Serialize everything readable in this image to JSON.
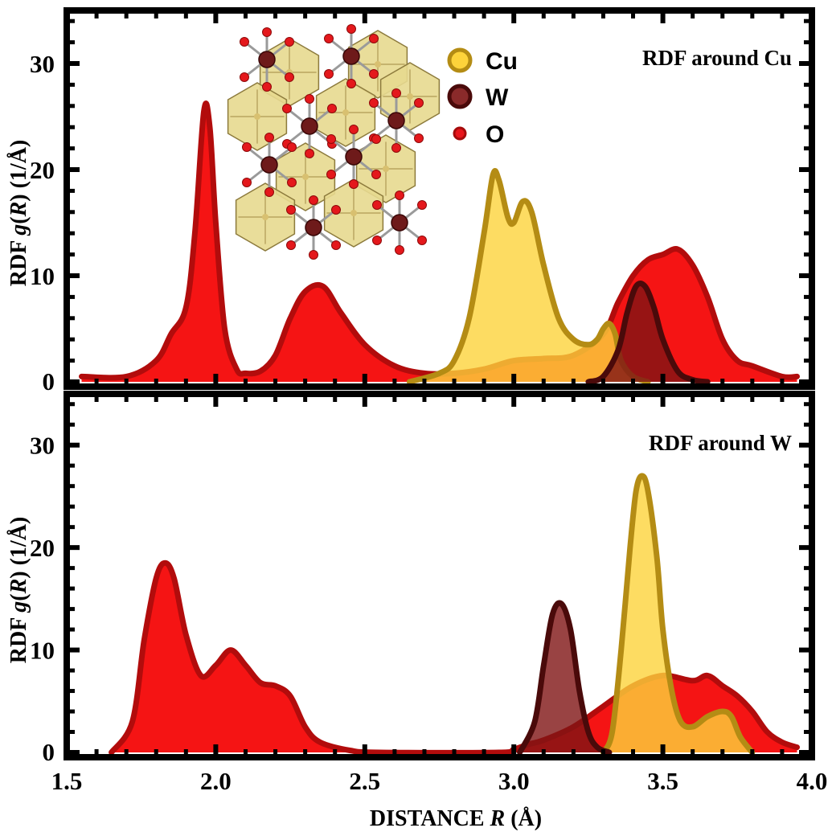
{
  "chart_data": [
    {
      "type": "area",
      "title": "RDF around Cu",
      "xlabel_prefix": "DISTANCE ",
      "xlabel_var": "R",
      "xlabel_suffix": " (Å)",
      "ylabel_prefix": "RDF ",
      "ylabel_func": "g",
      "ylabel_var": "R",
      "ylabel_suffix": " (1/Å)",
      "xlim": [
        1.5,
        4.0
      ],
      "ylim": [
        0,
        35
      ],
      "xticks": [
        "1.5",
        "2.0",
        "2.5",
        "3.0",
        "3.5",
        "4.0"
      ],
      "yticks": [
        "0",
        "10",
        "20",
        "30"
      ],
      "legend": [
        {
          "label": "Cu",
          "color": "#fdd33b",
          "edge": "#b48c14"
        },
        {
          "label": "W",
          "color": "#8a2a2a",
          "edge": "#4a0a0a"
        },
        {
          "label": "O",
          "color": "#e8151b",
          "edge": "#a50b0b"
        }
      ],
      "series": [
        {
          "name": "O",
          "fill": "#f40000",
          "edge": "#b20c0c",
          "x": [
            1.55,
            1.7,
            1.8,
            1.85,
            1.9,
            1.93,
            1.96,
            1.98,
            2.0,
            2.03,
            2.07,
            2.1,
            2.15,
            2.2,
            2.25,
            2.3,
            2.36,
            2.42,
            2.5,
            2.6,
            2.7,
            2.8,
            2.9,
            3.0,
            3.1,
            3.2,
            3.3,
            3.35,
            3.4,
            3.45,
            3.5,
            3.55,
            3.6,
            3.65,
            3.7,
            3.75,
            3.8,
            3.9,
            3.95
          ],
          "values": [
            0.5,
            0.5,
            2.0,
            4.5,
            7.0,
            14.0,
            25.5,
            24.0,
            15.0,
            5.0,
            1.2,
            0.8,
            1.0,
            2.5,
            6.0,
            8.5,
            9.0,
            6.5,
            3.5,
            1.5,
            0.8,
            0.8,
            1.2,
            2.0,
            2.2,
            2.5,
            4.5,
            7.5,
            10.0,
            11.5,
            12.0,
            12.5,
            11.0,
            8.0,
            4.0,
            2.0,
            1.5,
            0.5,
            0.5
          ]
        },
        {
          "name": "Cu",
          "fill": "#fdd33b",
          "edge": "#b48c14",
          "x": [
            2.65,
            2.75,
            2.8,
            2.85,
            2.9,
            2.93,
            2.95,
            2.98,
            3.0,
            3.03,
            3.06,
            3.1,
            3.15,
            3.2,
            3.25,
            3.28,
            3.3,
            3.32,
            3.34,
            3.36,
            3.4,
            3.45
          ],
          "values": [
            0.0,
            0.8,
            2.0,
            6.0,
            14.0,
            19.5,
            19.0,
            15.5,
            15.0,
            17.0,
            16.0,
            11.0,
            6.0,
            4.0,
            3.5,
            4.0,
            5.0,
            5.5,
            4.5,
            2.0,
            0.5,
            0.0
          ]
        },
        {
          "name": "W",
          "fill": "#7f1414",
          "edge": "#4a0a0a",
          "x": [
            3.25,
            3.3,
            3.35,
            3.38,
            3.41,
            3.44,
            3.47,
            3.5,
            3.55,
            3.6,
            3.65
          ],
          "values": [
            0.0,
            0.5,
            3.0,
            6.5,
            9.0,
            9.0,
            7.0,
            4.0,
            1.0,
            0.2,
            0.0
          ]
        }
      ]
    },
    {
      "type": "area",
      "title": "RDF around W",
      "xlabel_prefix": "DISTANCE ",
      "xlabel_var": "R",
      "xlabel_suffix": " (Å)",
      "ylabel_prefix": "RDF ",
      "ylabel_func": "g",
      "ylabel_var": "R",
      "ylabel_suffix": " (1/Å)",
      "xlim": [
        1.5,
        4.0
      ],
      "ylim": [
        0,
        35
      ],
      "xticks": [
        "1.5",
        "2.0",
        "2.5",
        "3.0",
        "3.5",
        "4.0"
      ],
      "yticks": [
        "0",
        "10",
        "20",
        "30"
      ],
      "series": [
        {
          "name": "O",
          "fill": "#f40000",
          "edge": "#b20c0c",
          "x": [
            1.65,
            1.72,
            1.76,
            1.8,
            1.83,
            1.86,
            1.9,
            1.95,
            2.0,
            2.05,
            2.1,
            2.15,
            2.2,
            2.25,
            2.3,
            2.35,
            2.45,
            2.55,
            2.95,
            3.0,
            3.05,
            3.1,
            3.2,
            3.3,
            3.4,
            3.5,
            3.6,
            3.65,
            3.7,
            3.75,
            3.8,
            3.85,
            3.9,
            3.95
          ],
          "values": [
            0.0,
            3.0,
            11.0,
            17.0,
            18.5,
            17.0,
            11.5,
            7.5,
            8.5,
            10.0,
            8.5,
            6.8,
            6.5,
            5.5,
            2.5,
            1.0,
            0.2,
            0.0,
            0.0,
            0.3,
            0.8,
            1.2,
            2.5,
            4.5,
            6.5,
            7.5,
            7.0,
            7.5,
            6.5,
            5.5,
            4.0,
            2.0,
            1.0,
            0.5
          ]
        },
        {
          "name": "Cu",
          "fill": "#fdd33b",
          "edge": "#b48c14",
          "x": [
            3.3,
            3.33,
            3.36,
            3.39,
            3.41,
            3.43,
            3.45,
            3.48,
            3.5,
            3.53,
            3.56,
            3.6,
            3.65,
            3.7,
            3.73,
            3.76,
            3.8
          ],
          "values": [
            0.0,
            2.0,
            10.0,
            20.0,
            25.5,
            27.0,
            25.5,
            19.0,
            12.0,
            6.0,
            3.0,
            2.5,
            3.5,
            4.0,
            3.5,
            1.5,
            0.0
          ]
        },
        {
          "name": "W",
          "fill": "#7f1414",
          "edge": "#4a0a0a",
          "x": [
            3.02,
            3.07,
            3.1,
            3.13,
            3.16,
            3.19,
            3.22,
            3.25,
            3.28,
            3.32
          ],
          "values": [
            0.0,
            3.0,
            8.5,
            13.5,
            14.5,
            12.0,
            6.0,
            2.0,
            0.5,
            0.0
          ]
        }
      ]
    }
  ]
}
